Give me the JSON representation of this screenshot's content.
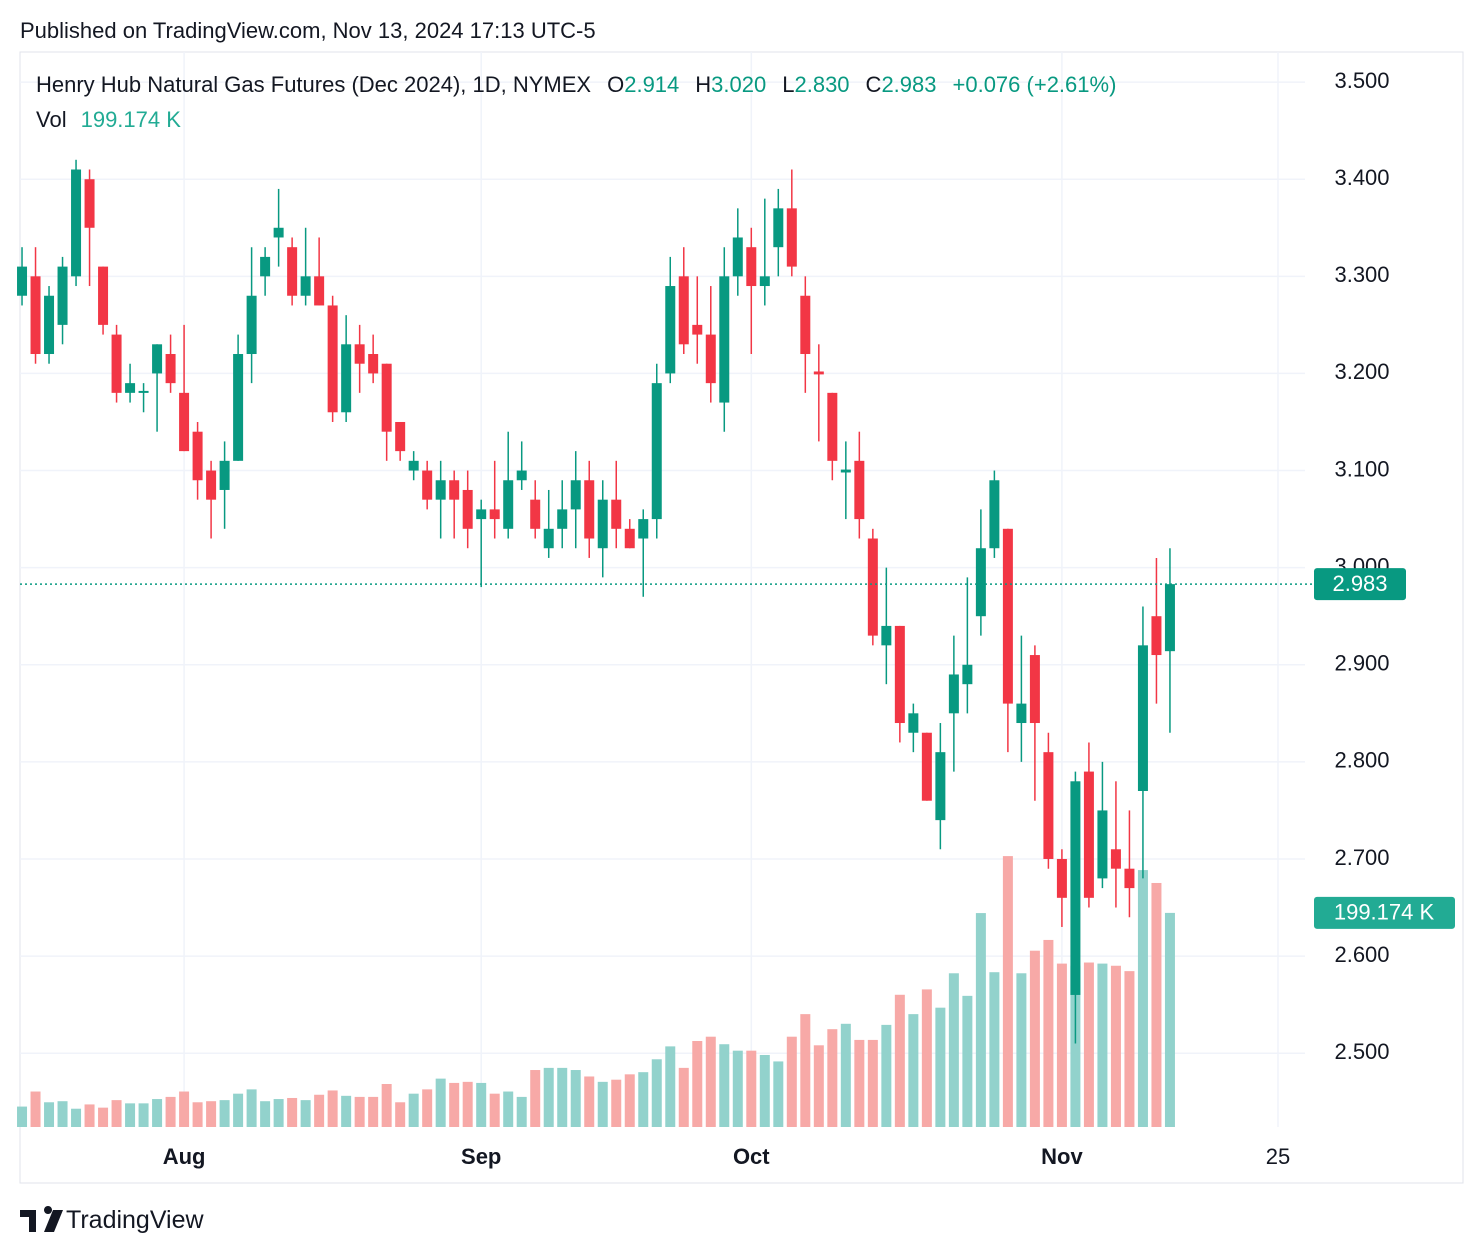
{
  "published": "Published on TradingView.com, Nov 13, 2024 17:13 UTC-5",
  "brand": "TradingView",
  "chart_data": {
    "type": "candlestick",
    "title": "Henry Hub Natural Gas Futures (Dec 2024), 1D, NYMEX",
    "header_values": [
      {
        "key": "O",
        "value": "2.914"
      },
      {
        "key": "H",
        "value": "3.020"
      },
      {
        "key": "L",
        "value": "2.830"
      },
      {
        "key": "C",
        "value": "2.983"
      }
    ],
    "change_label": "+0.076 (+2.61%)",
    "open": [
      3.28,
      3.3,
      3.22,
      3.25,
      3.3,
      3.4,
      3.31,
      3.24,
      3.18,
      3.18,
      3.2,
      3.22,
      3.18,
      3.14,
      3.1,
      3.08,
      3.11,
      3.22,
      3.3,
      3.34,
      3.33,
      3.28,
      3.3,
      3.27,
      3.16,
      3.23,
      3.22,
      3.21,
      3.15,
      3.1,
      3.1,
      3.07,
      3.09,
      3.08,
      3.05,
      3.06,
      3.04,
      3.09,
      3.07,
      3.02,
      3.04,
      3.06,
      3.09,
      3.02,
      3.07,
      3.04,
      3.03,
      3.05,
      3.2,
      3.3,
      3.25,
      3.24,
      3.17,
      3.3,
      3.33,
      3.29,
      3.33,
      3.37,
      3.28,
      3.202,
      3.18,
      3.098,
      3.11,
      3.03,
      2.92,
      2.94,
      2.83,
      2.83,
      2.74,
      2.85,
      2.88,
      2.95,
      3.02,
      3.04,
      2.84,
      2.91,
      2.81,
      2.7,
      2.56,
      2.79,
      2.68,
      2.71,
      2.69,
      2.77,
      2.95,
      2.914
    ],
    "high": [
      3.33,
      3.33,
      3.29,
      3.32,
      3.42,
      3.41,
      3.31,
      3.25,
      3.21,
      3.19,
      3.23,
      3.24,
      3.25,
      3.15,
      3.11,
      3.13,
      3.24,
      3.33,
      3.33,
      3.39,
      3.34,
      3.35,
      3.34,
      3.28,
      3.26,
      3.25,
      3.24,
      3.21,
      3.15,
      3.12,
      3.11,
      3.11,
      3.1,
      3.1,
      3.07,
      3.11,
      3.14,
      3.13,
      3.09,
      3.08,
      3.09,
      3.12,
      3.11,
      3.09,
      3.11,
      3.05,
      3.06,
      3.21,
      3.32,
      3.33,
      3.3,
      3.29,
      3.33,
      3.37,
      3.35,
      3.38,
      3.39,
      3.41,
      3.3,
      3.23,
      3.18,
      3.13,
      3.14,
      3.04,
      3.0,
      2.94,
      2.86,
      2.83,
      2.84,
      2.93,
      2.99,
      3.06,
      3.1,
      3.04,
      2.93,
      2.92,
      2.83,
      2.71,
      2.79,
      2.82,
      2.8,
      2.78,
      2.75,
      2.96,
      3.01,
      3.02
    ],
    "low": [
      3.27,
      3.21,
      3.21,
      3.23,
      3.29,
      3.29,
      3.24,
      3.17,
      3.17,
      3.16,
      3.14,
      3.18,
      3.12,
      3.07,
      3.03,
      3.04,
      3.11,
      3.19,
      3.28,
      3.31,
      3.27,
      3.27,
      3.27,
      3.15,
      3.15,
      3.18,
      3.19,
      3.11,
      3.11,
      3.09,
      3.06,
      3.03,
      3.03,
      3.02,
      2.98,
      3.03,
      3.03,
      3.08,
      3.03,
      3.01,
      3.02,
      3.02,
      3.01,
      2.99,
      3.02,
      3.02,
      2.97,
      3.03,
      3.19,
      3.22,
      3.21,
      3.17,
      3.14,
      3.28,
      3.22,
      3.27,
      3.3,
      3.3,
      3.18,
      3.13,
      3.09,
      3.05,
      3.03,
      2.92,
      2.88,
      2.82,
      2.81,
      2.76,
      2.71,
      2.79,
      2.85,
      2.93,
      3.01,
      2.81,
      2.8,
      2.76,
      2.69,
      2.63,
      2.51,
      2.65,
      2.67,
      2.65,
      2.64,
      2.68,
      2.86,
      2.83
    ],
    "close": [
      3.31,
      3.22,
      3.28,
      3.31,
      3.41,
      3.35,
      3.25,
      3.18,
      3.19,
      3.182,
      3.23,
      3.19,
      3.12,
      3.09,
      3.07,
      3.11,
      3.22,
      3.28,
      3.32,
      3.35,
      3.28,
      3.3,
      3.27,
      3.16,
      3.23,
      3.21,
      3.2,
      3.14,
      3.12,
      3.11,
      3.07,
      3.09,
      3.07,
      3.04,
      3.06,
      3.05,
      3.09,
      3.1,
      3.04,
      3.04,
      3.06,
      3.09,
      3.03,
      3.07,
      3.04,
      3.02,
      3.05,
      3.19,
      3.29,
      3.23,
      3.24,
      3.19,
      3.3,
      3.34,
      3.29,
      3.3,
      3.37,
      3.31,
      3.22,
      3.199,
      3.11,
      3.101,
      3.05,
      2.93,
      2.94,
      2.84,
      2.85,
      2.76,
      2.81,
      2.89,
      2.9,
      3.02,
      3.09,
      2.86,
      2.86,
      2.84,
      2.7,
      2.66,
      2.78,
      2.66,
      2.75,
      2.69,
      2.67,
      2.92,
      2.91,
      2.983
    ],
    "up_color": "#089981",
    "down_color": "#f23645",
    "volume": {
      "name": "Vol",
      "values": [
        19,
        33,
        23,
        24,
        17,
        21,
        18,
        25,
        22,
        22,
        26,
        28,
        33,
        23,
        24,
        25,
        31,
        35,
        24,
        26,
        27,
        25,
        30,
        34,
        29,
        28,
        28,
        40,
        23,
        31,
        35,
        45,
        41,
        42,
        41,
        31,
        33,
        28,
        53,
        55,
        55,
        53,
        47,
        42,
        44,
        49,
        51,
        63,
        75,
        55,
        80,
        84,
        77,
        71,
        71,
        67,
        61,
        84,
        105,
        76,
        91,
        96,
        81,
        81,
        95,
        123,
        105,
        128,
        111,
        143,
        122,
        199,
        144,
        252,
        143,
        164,
        174,
        152,
        150,
        153,
        152,
        150,
        145,
        239,
        227,
        199.174
      ],
      "last_label": "199.174 K",
      "ylim": [
        0,
        1000
      ],
      "up_color": "#92d2cc",
      "down_color": "#f7a9a7"
    },
    "xlim": [
      -0.15,
      95
    ],
    "xticks": [
      {
        "value": 12,
        "label": "Aug"
      },
      {
        "value": 34,
        "label": "Sep"
      },
      {
        "value": 54,
        "label": "Oct"
      },
      {
        "value": 77,
        "label": "Nov"
      },
      {
        "value": 93,
        "label": "25"
      }
    ],
    "ylim": [
      2.424,
      3.531
    ],
    "yticks": [
      {
        "value": 2.5,
        "label": "2.500"
      },
      {
        "value": 2.6,
        "label": "2.600"
      },
      {
        "value": 2.7,
        "label": "2.700"
      },
      {
        "value": 2.8,
        "label": "2.800"
      },
      {
        "value": 2.9,
        "label": "2.900"
      },
      {
        "value": 3.0,
        "label": "3.000"
      },
      {
        "value": 3.1,
        "label": "3.100"
      },
      {
        "value": 3.2,
        "label": "3.200"
      },
      {
        "value": 3.3,
        "label": "3.300"
      },
      {
        "value": 3.4,
        "label": "3.400"
      },
      {
        "value": 3.5,
        "label": "3.500"
      }
    ],
    "grid": true
  }
}
